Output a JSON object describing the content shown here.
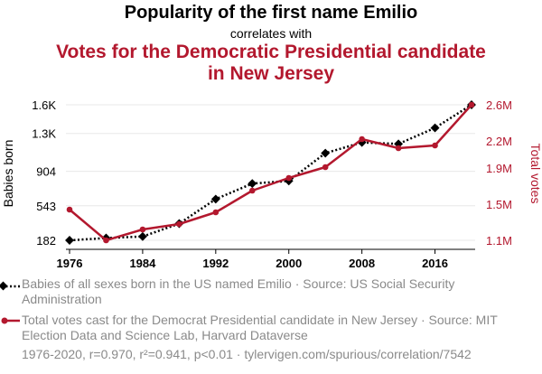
{
  "header": {
    "title": "Popularity of the first name Emilio",
    "subtitle": "correlates with",
    "title2": "Votes for the Democratic Presidential candidate in New Jersey"
  },
  "chart_data": {
    "type": "line",
    "x": [
      1976,
      1980,
      1984,
      1988,
      1992,
      1996,
      2000,
      2004,
      2008,
      2012,
      2016,
      2020
    ],
    "xticks": [
      "1976",
      "1984",
      "1992",
      "2000",
      "2008",
      "2016"
    ],
    "xtick_values": [
      1976,
      1984,
      1992,
      2000,
      2008,
      2016
    ],
    "xlim": [
      1976,
      2020
    ],
    "ylabel_left": "Babies born",
    "ylabel_right": "Total votes",
    "yticks_left": [
      "1.6K",
      "1.3K",
      "904",
      "543",
      "182"
    ],
    "yticks_left_values": [
      1600,
      1300,
      904,
      543,
      182
    ],
    "ylim_left": [
      182,
      1600
    ],
    "yticks_right": [
      "2.6M",
      "2.2M",
      "1.9M",
      "1.5M",
      "1.1M"
    ],
    "yticks_right_values": [
      2.6,
      2.2,
      1.9,
      1.5,
      1.1
    ],
    "ylim_right": [
      1.1,
      2.6
    ],
    "series": [
      {
        "name": "Babies of all sexes born in the US named Emilio · Source: US Social Security Administration",
        "axis": "left",
        "color": "#000000",
        "style": "dotted",
        "marker": "diamond",
        "values": [
          182,
          206,
          222,
          357,
          613,
          776,
          803,
          1094,
          1206,
          1191,
          1358,
          1600
        ]
      },
      {
        "name": "Total votes cast for the Democrat Presidential candidate in New Jersey · Source: MIT Election Data and Science Lab, Harvard Dataverse",
        "axis": "right",
        "color": "#b3182e",
        "style": "solid",
        "marker": "circle",
        "values": [
          1.44,
          1.1,
          1.22,
          1.28,
          1.41,
          1.65,
          1.79,
          1.91,
          2.22,
          2.12,
          2.15,
          2.6
        ]
      }
    ]
  },
  "legend": {
    "series1": "Babies of all sexes born in the US named Emilio · Source: US Social Security Administration",
    "series2": "Total votes cast for the Democrat Presidential candidate in New Jersey · Source: MIT Election Data and Science Lab, Harvard Dataverse"
  },
  "footer": "1976-2020, r=0.970, r²=0.941, p<0.01 · tylervigen.com/spurious/correlation/7542"
}
